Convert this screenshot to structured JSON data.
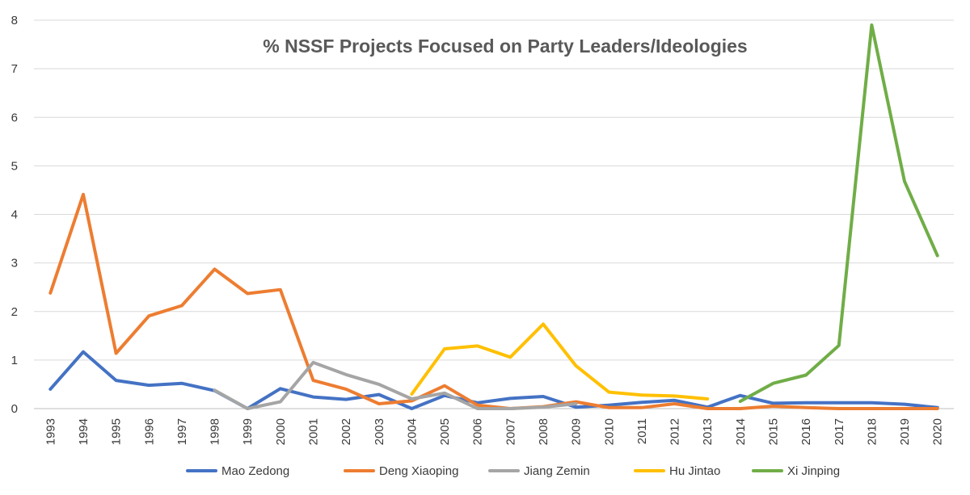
{
  "chart_data": {
    "type": "line",
    "title": "% NSSF Projects Focused on Party Leaders/Ideologies",
    "xlabel": "",
    "ylabel": "",
    "ylim": [
      0,
      8
    ],
    "yticks": [
      0,
      1,
      2,
      3,
      4,
      5,
      6,
      7,
      8
    ],
    "grid": true,
    "legend_position": "bottom",
    "categories": [
      "1993",
      "1994",
      "1995",
      "1996",
      "1997",
      "1998",
      "1999",
      "2000",
      "2001",
      "2002",
      "2003",
      "2004",
      "2005",
      "2006",
      "2007",
      "2008",
      "2009",
      "2010",
      "2011",
      "2012",
      "2013",
      "2014",
      "2015",
      "2016",
      "2017",
      "2018",
      "2019",
      "2020"
    ],
    "series": [
      {
        "name": "Mao Zedong",
        "color": "#4472c4",
        "values": [
          0.4,
          1.17,
          0.58,
          0.48,
          0.52,
          0.37,
          0.0,
          0.41,
          0.24,
          0.19,
          0.29,
          0.0,
          0.27,
          0.12,
          0.21,
          0.25,
          0.03,
          0.07,
          0.13,
          0.17,
          0.03,
          0.27,
          0.11,
          0.12,
          0.12,
          0.12,
          0.09,
          0.02
        ]
      },
      {
        "name": "Deng Xiaoping",
        "color": "#ed7d31",
        "values": [
          2.38,
          4.41,
          1.14,
          1.91,
          2.12,
          2.87,
          2.37,
          2.45,
          0.58,
          0.4,
          0.1,
          0.16,
          0.47,
          0.07,
          0.0,
          0.04,
          0.14,
          0.02,
          0.02,
          0.1,
          0.0,
          0.0,
          0.05,
          0.02,
          0.0,
          0.0,
          0.0,
          0.0
        ]
      },
      {
        "name": "Jiang Zemin",
        "color": "#a5a5a5",
        "values": [
          null,
          null,
          null,
          null,
          null,
          0.38,
          0.0,
          0.14,
          0.95,
          0.7,
          0.5,
          0.2,
          0.32,
          0.0,
          0.0,
          0.03,
          0.1,
          null,
          null,
          null,
          null,
          null,
          null,
          null,
          null,
          null,
          null,
          null
        ]
      },
      {
        "name": "Hu Jintao",
        "color": "#ffc000",
        "values": [
          null,
          null,
          null,
          null,
          null,
          null,
          null,
          null,
          null,
          null,
          null,
          0.3,
          1.23,
          1.29,
          1.06,
          1.74,
          0.88,
          0.34,
          0.28,
          0.26,
          0.2,
          null,
          null,
          null,
          null,
          null,
          null,
          null
        ]
      },
      {
        "name": "Xi Jinping",
        "color": "#70ad47",
        "values": [
          null,
          null,
          null,
          null,
          null,
          null,
          null,
          null,
          null,
          null,
          null,
          null,
          null,
          null,
          null,
          null,
          null,
          null,
          null,
          null,
          null,
          0.15,
          0.52,
          0.69,
          1.3,
          7.9,
          4.68,
          3.15
        ]
      }
    ]
  }
}
